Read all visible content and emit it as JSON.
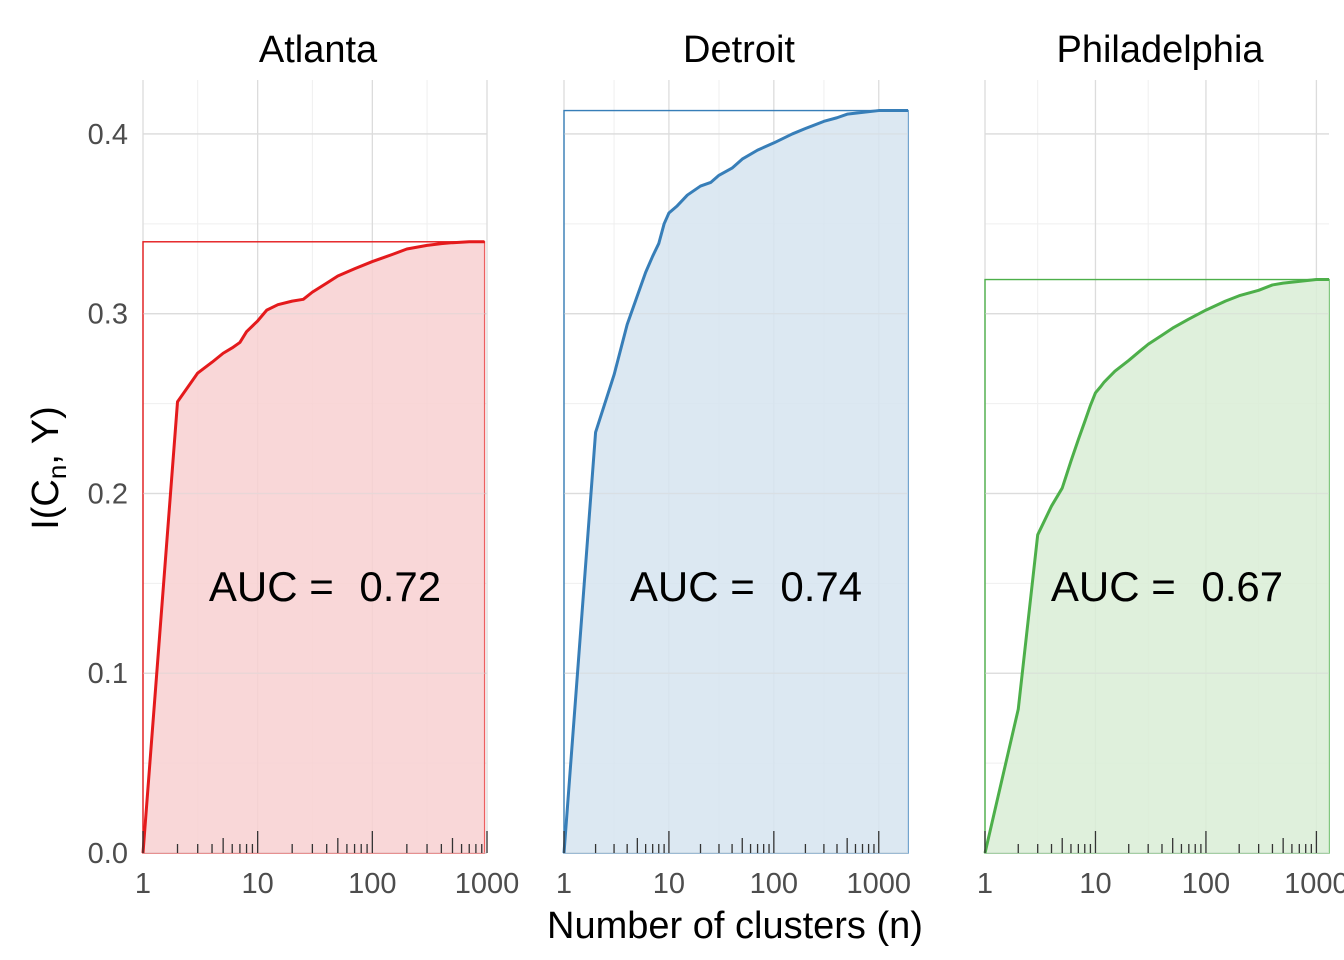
{
  "chart_data": {
    "type": "area",
    "xlabel": "Number of clusters (n)",
    "ylabel_main": "I(C",
    "ylabel_sub": "n",
    "ylabel_end": ", Y)",
    "x_scale": "log10",
    "y_ticks": [
      "0.0",
      "0.1",
      "0.2",
      "0.3",
      "0.4"
    ],
    "y_tick_values": [
      0,
      0.1,
      0.2,
      0.3,
      0.4
    ],
    "ylim": [
      0,
      0.43
    ],
    "x_ticks": [
      "1",
      "10",
      "100",
      "1000"
    ],
    "x_tick_values": [
      1,
      10,
      100,
      1000
    ],
    "grid": true,
    "facets": [
      {
        "title": "Atlanta",
        "color": "#e41a1c",
        "fill": "#f8d0d1",
        "xlim": [
          1,
          1000
        ],
        "x_max": 950,
        "y_max": 0.34,
        "auc_prefix": "AUC = ",
        "auc_value": "0.72",
        "x": [
          1,
          2,
          3,
          4,
          5,
          6,
          7,
          8,
          10,
          12,
          15,
          20,
          25,
          30,
          40,
          50,
          70,
          100,
          150,
          200,
          300,
          400,
          500,
          700,
          950
        ],
        "y": [
          0,
          0.251,
          0.267,
          0.273,
          0.278,
          0.281,
          0.284,
          0.29,
          0.296,
          0.302,
          0.305,
          0.307,
          0.308,
          0.312,
          0.317,
          0.321,
          0.325,
          0.329,
          0.333,
          0.336,
          0.338,
          0.339,
          0.3395,
          0.34,
          0.34
        ]
      },
      {
        "title": "Detroit",
        "color": "#377eb8",
        "fill": "#d6e4f0",
        "xlim": [
          1,
          1900
        ],
        "x_max": 1900,
        "y_max": 0.413,
        "auc_prefix": "AUC = ",
        "auc_value": "0.74",
        "x": [
          1,
          2,
          3,
          4,
          5,
          6,
          7,
          8,
          9,
          10,
          12,
          15,
          20,
          25,
          30,
          40,
          50,
          70,
          100,
          150,
          200,
          300,
          400,
          500,
          700,
          1000,
          1500,
          1900
        ],
        "y": [
          0,
          0.234,
          0.266,
          0.294,
          0.31,
          0.323,
          0.332,
          0.339,
          0.35,
          0.356,
          0.36,
          0.366,
          0.371,
          0.373,
          0.377,
          0.381,
          0.386,
          0.391,
          0.395,
          0.4,
          0.403,
          0.407,
          0.409,
          0.411,
          0.412,
          0.413,
          0.413,
          0.413
        ]
      },
      {
        "title": "Philadelphia",
        "color": "#4daf4a",
        "fill": "#d9edd6",
        "xlim": [
          1,
          1300
        ],
        "x_max": 1300,
        "y_max": 0.319,
        "auc_prefix": "AUC = ",
        "auc_value": "0.67",
        "x": [
          1,
          2,
          3,
          4,
          5,
          6,
          7,
          8,
          9,
          10,
          11,
          12,
          15,
          20,
          25,
          30,
          40,
          50,
          70,
          100,
          150,
          200,
          300,
          400,
          500,
          700,
          1000,
          1300
        ],
        "y": [
          0,
          0.08,
          0.177,
          0.193,
          0.203,
          0.218,
          0.23,
          0.24,
          0.249,
          0.256,
          0.259,
          0.262,
          0.268,
          0.274,
          0.279,
          0.283,
          0.288,
          0.292,
          0.297,
          0.302,
          0.307,
          0.31,
          0.313,
          0.316,
          0.317,
          0.318,
          0.319,
          0.319
        ]
      }
    ]
  }
}
